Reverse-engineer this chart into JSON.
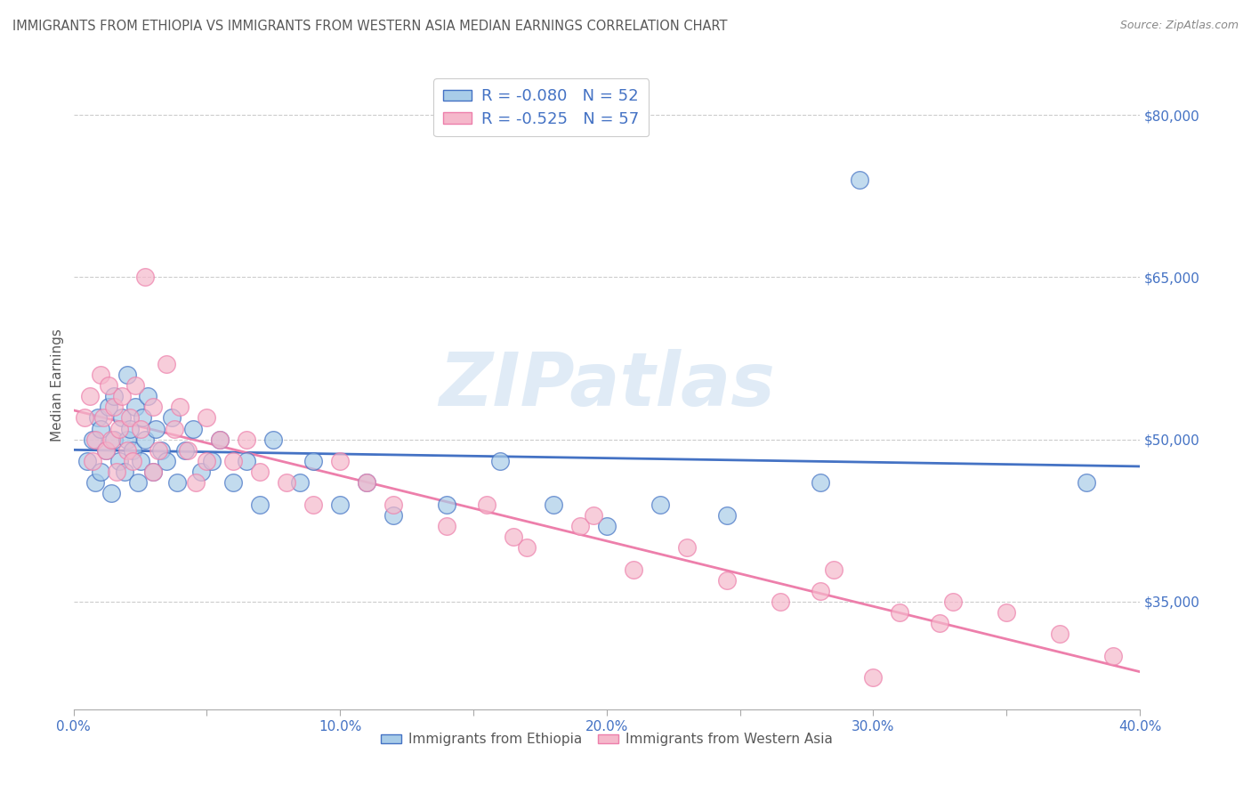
{
  "title": "IMMIGRANTS FROM ETHIOPIA VS IMMIGRANTS FROM WESTERN ASIA MEDIAN EARNINGS CORRELATION CHART",
  "source": "Source: ZipAtlas.com",
  "ylabel": "Median Earnings",
  "xmin": 0.0,
  "xmax": 0.4,
  "ymin": 25000,
  "ymax": 85000,
  "yticks": [
    35000,
    50000,
    65000,
    80000
  ],
  "ytick_labels": [
    "$35,000",
    "$50,000",
    "$65,000",
    "$80,000"
  ],
  "xticks": [
    0.0,
    0.05,
    0.1,
    0.15,
    0.2,
    0.25,
    0.3,
    0.35,
    0.4
  ],
  "xtick_labels": [
    "0.0%",
    "",
    "10.0%",
    "",
    "20.0%",
    "",
    "30.0%",
    "",
    "40.0%"
  ],
  "series1_label": "Immigrants from Ethiopia",
  "series2_label": "Immigrants from Western Asia",
  "series1_color": "#A8CCE8",
  "series2_color": "#F5B8CB",
  "series1_line_color": "#4472C4",
  "series2_line_color": "#ED7FAB",
  "R1": -0.08,
  "N1": 52,
  "R2": -0.525,
  "N2": 57,
  "legend_text_color": "#4472C4",
  "title_color": "#595959",
  "axis_color": "#4472C4",
  "watermark": "ZIPatlas",
  "background_color": "#FFFFFF",
  "series1_x": [
    0.005,
    0.007,
    0.008,
    0.009,
    0.01,
    0.01,
    0.012,
    0.013,
    0.014,
    0.015,
    0.015,
    0.017,
    0.018,
    0.019,
    0.02,
    0.02,
    0.021,
    0.022,
    0.023,
    0.024,
    0.025,
    0.026,
    0.027,
    0.028,
    0.03,
    0.031,
    0.033,
    0.035,
    0.037,
    0.039,
    0.042,
    0.045,
    0.048,
    0.052,
    0.055,
    0.06,
    0.065,
    0.07,
    0.075,
    0.085,
    0.09,
    0.1,
    0.11,
    0.12,
    0.14,
    0.16,
    0.18,
    0.2,
    0.22,
    0.245,
    0.28,
    0.38
  ],
  "series1_y": [
    48000,
    50000,
    46000,
    52000,
    47000,
    51000,
    49000,
    53000,
    45000,
    50000,
    54000,
    48000,
    52000,
    47000,
    50000,
    56000,
    51000,
    49000,
    53000,
    46000,
    48000,
    52000,
    50000,
    54000,
    47000,
    51000,
    49000,
    48000,
    52000,
    46000,
    49000,
    51000,
    47000,
    48000,
    50000,
    46000,
    48000,
    44000,
    50000,
    46000,
    48000,
    44000,
    46000,
    43000,
    44000,
    48000,
    44000,
    42000,
    44000,
    43000,
    46000,
    46000
  ],
  "series1_outlier_x": [
    0.295
  ],
  "series1_outlier_y": [
    74000
  ],
  "series2_x": [
    0.004,
    0.006,
    0.007,
    0.008,
    0.01,
    0.011,
    0.012,
    0.013,
    0.014,
    0.015,
    0.016,
    0.017,
    0.018,
    0.02,
    0.021,
    0.022,
    0.023,
    0.025,
    0.027,
    0.03,
    0.032,
    0.035,
    0.038,
    0.04,
    0.043,
    0.046,
    0.05,
    0.055,
    0.06,
    0.065,
    0.07,
    0.08,
    0.09,
    0.1,
    0.11,
    0.12,
    0.14,
    0.155,
    0.17,
    0.19,
    0.21,
    0.23,
    0.245,
    0.265,
    0.285,
    0.31,
    0.33,
    0.35,
    0.37,
    0.39,
    0.165,
    0.05,
    0.03,
    0.195,
    0.28,
    0.325,
    0.3
  ],
  "series2_y": [
    52000,
    54000,
    48000,
    50000,
    56000,
    52000,
    49000,
    55000,
    50000,
    53000,
    47000,
    51000,
    54000,
    49000,
    52000,
    48000,
    55000,
    51000,
    65000,
    53000,
    49000,
    57000,
    51000,
    53000,
    49000,
    46000,
    52000,
    50000,
    48000,
    50000,
    47000,
    46000,
    44000,
    48000,
    46000,
    44000,
    42000,
    44000,
    40000,
    42000,
    38000,
    40000,
    37000,
    35000,
    38000,
    34000,
    35000,
    34000,
    32000,
    30000,
    41000,
    48000,
    47000,
    43000,
    36000,
    33000,
    28000
  ]
}
